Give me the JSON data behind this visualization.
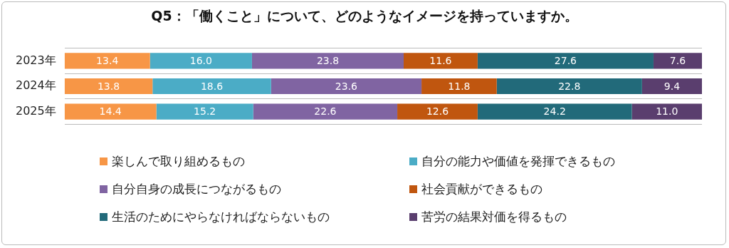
{
  "chart_data": {
    "type": "bar",
    "orientation": "horizontal",
    "stacked": true,
    "title": "Q5：「働くこと」について、どのようなイメージを持っていますか。",
    "categories": [
      "2023年",
      "2024年",
      "2025年"
    ],
    "series": [
      {
        "name": "楽しんで取り組めるもの",
        "color": "#f79646",
        "values": [
          13.4,
          13.8,
          14.4
        ],
        "value_labels": [
          "13.4",
          "13.8",
          "14.4"
        ]
      },
      {
        "name": "自分の能力や価値を発揮できるもの",
        "color": "#4bacc6",
        "values": [
          16.0,
          18.6,
          15.2
        ],
        "value_labels": [
          "16.0",
          "18.6",
          "15.2"
        ]
      },
      {
        "name": "自分自身の成長につながるもの",
        "color": "#8064a2",
        "values": [
          23.8,
          23.6,
          22.6
        ],
        "value_labels": [
          "23.8",
          "23.6",
          "22.6"
        ]
      },
      {
        "name": "社会貢献ができるもの",
        "color": "#c0560f",
        "values": [
          11.6,
          11.8,
          12.6
        ],
        "value_labels": [
          "11.6",
          "11.8",
          "12.6"
        ]
      },
      {
        "name": "生活のためにやらなければならないもの",
        "color": "#226a7a",
        "values": [
          27.6,
          22.8,
          24.2
        ],
        "value_labels": [
          "27.6",
          "22.8",
          "24.2"
        ]
      },
      {
        "name": "苦労の結果対価を得るもの",
        "color": "#5a3e6e",
        "values": [
          7.6,
          9.4,
          11.0
        ],
        "value_labels": [
          "7.6",
          "9.4",
          "11.0"
        ]
      }
    ],
    "legend": "bottom",
    "grid": "y"
  }
}
